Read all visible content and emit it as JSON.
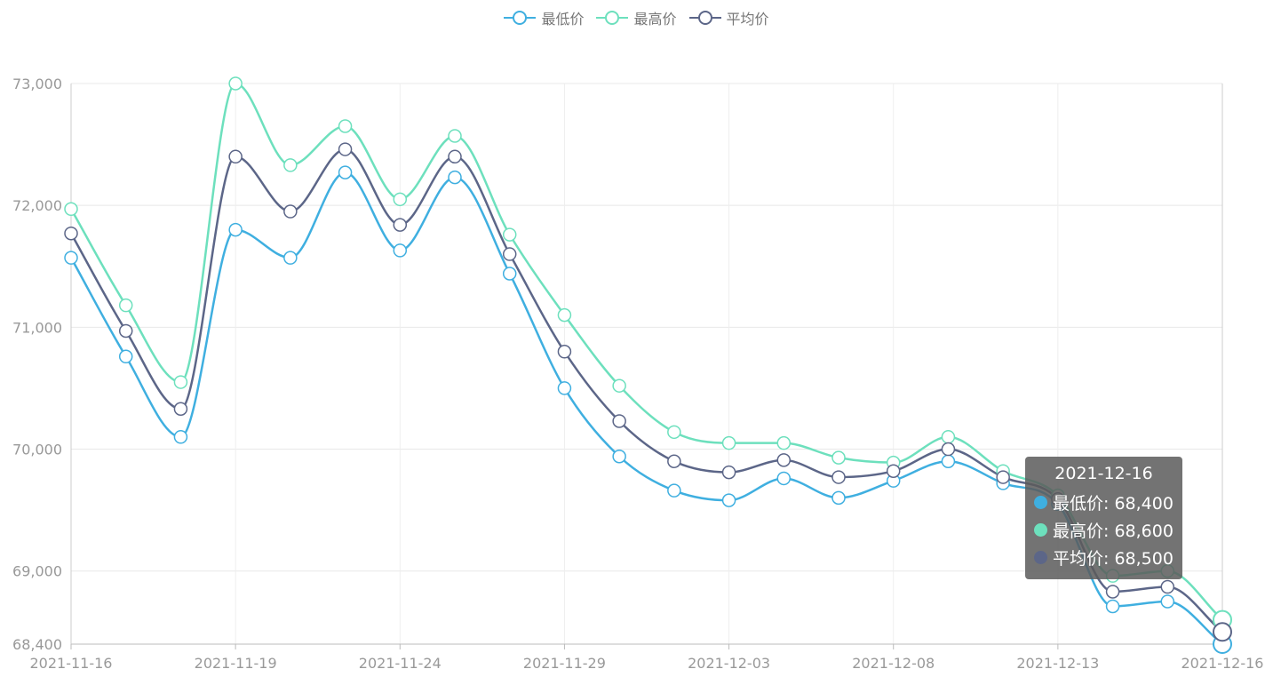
{
  "legend": [
    {
      "name": "最低价",
      "color": "#3fafe0"
    },
    {
      "name": "最高价",
      "color": "#6de0bd"
    },
    {
      "name": "平均价",
      "color": "#5c6688"
    }
  ],
  "chart_data": {
    "type": "line",
    "smooth": true,
    "x": [
      "2021-11-16",
      "2021-11-17",
      "2021-11-18",
      "2021-11-19",
      "2021-11-22",
      "2021-11-23",
      "2021-11-24",
      "2021-11-25",
      "2021-11-26",
      "2021-11-29",
      "2021-11-30",
      "2021-12-01",
      "2021-12-03",
      "2021-12-06",
      "2021-12-07",
      "2021-12-08",
      "2021-12-09",
      "2021-12-10",
      "2021-12-13",
      "2021-12-14",
      "2021-12-15",
      "2021-12-16"
    ],
    "x_tick_labels": [
      "2021-11-16",
      "2021-11-19",
      "2021-11-24",
      "2021-11-29",
      "2021-12-03",
      "2021-12-08",
      "2021-12-13",
      "2021-12-16"
    ],
    "x_tick_indices": [
      0,
      3,
      6,
      9,
      12,
      15,
      18,
      21
    ],
    "series": [
      {
        "name": "最低价",
        "color": "#3fafe0",
        "values": [
          71570,
          70760,
          70100,
          71800,
          71570,
          72270,
          71630,
          72230,
          71440,
          70500,
          69940,
          69660,
          69580,
          69760,
          69600,
          69740,
          69900,
          69720,
          69550,
          68710,
          68750,
          68400
        ]
      },
      {
        "name": "最高价",
        "color": "#6de0bd",
        "values": [
          71970,
          71180,
          70550,
          73000,
          72330,
          72650,
          72050,
          72570,
          71760,
          71100,
          70520,
          70140,
          70050,
          70050,
          69930,
          69890,
          70100,
          69820,
          69620,
          68960,
          69000,
          68600
        ]
      },
      {
        "name": "平均价",
        "color": "#5c6688",
        "values": [
          71770,
          70970,
          70330,
          72400,
          71950,
          72460,
          71840,
          72400,
          71600,
          70800,
          70230,
          69900,
          69810,
          69910,
          69770,
          69820,
          70000,
          69770,
          69590,
          68830,
          68870,
          68500
        ]
      }
    ],
    "ylim": [
      68400,
      73000
    ],
    "y_ticks": [
      68400,
      69000,
      70000,
      71000,
      72000,
      73000
    ],
    "y_tick_labels": [
      "68,400",
      "69,000",
      "70,000",
      "71,000",
      "72,000",
      "73,000"
    ],
    "grid": true,
    "legend_position": "top-center"
  },
  "tooltip": {
    "title": "2021-12-16",
    "rows": [
      {
        "label": "最低价: 68,400",
        "color": "#3fafe0"
      },
      {
        "label": "最高价: 68,600",
        "color": "#6de0bd"
      },
      {
        "label": "平均价: 68,500",
        "color": "#5c6688"
      }
    ]
  }
}
